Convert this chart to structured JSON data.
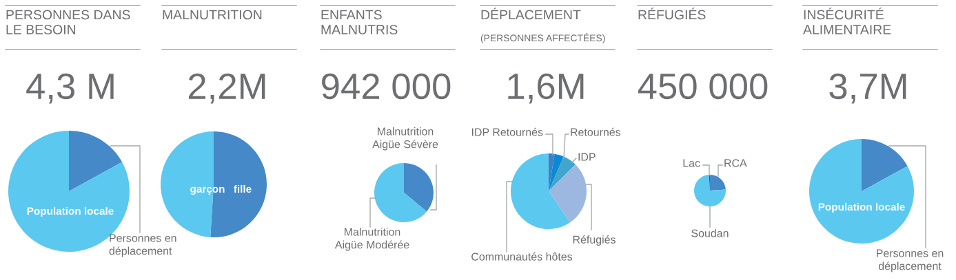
{
  "chart_data": [
    {
      "type": "pie",
      "title": "PERSONNES DANS\nLE BESOIN",
      "annotations": [
        "4,3 M"
      ],
      "categories": [
        "Personnes en\ndéplacement",
        "Population locale"
      ],
      "values": [
        17,
        83
      ],
      "colors": [
        "#4589c8",
        "#5bc8f0"
      ]
    },
    {
      "type": "pie",
      "title": "MALNUTRITION",
      "annotations": [
        "2,2M"
      ],
      "categories": [
        "fille",
        "garçon"
      ],
      "values": [
        51,
        49
      ],
      "colors": [
        "#4589c8",
        "#5bc8f0"
      ]
    },
    {
      "type": "pie",
      "title": "ENFANTS\nMALNUTRIS",
      "annotations": [
        "942 000"
      ],
      "categories": [
        "Malnutrition\nAigüe Sévère",
        "Malnutrition\nAigüe Modérée"
      ],
      "values": [
        36,
        64
      ],
      "colors": [
        "#4589c8",
        "#5bc8f0"
      ]
    },
    {
      "type": "pie",
      "title": "DÉPLACEMENT",
      "subtitle": "(PERSONNES AFFECTÉES)",
      "annotations": [
        "1,6M"
      ],
      "categories": [
        "IDP Retournés",
        "Retournés",
        "IDP",
        "Réfugiés",
        "Communautés hôtes"
      ],
      "values": [
        2.5,
        4,
        6,
        28,
        59.5
      ],
      "colors": [
        "#3f7fc4",
        "#0a8ad6",
        "#40a6cc",
        "#9cb8e0",
        "#5bc8f0"
      ]
    },
    {
      "type": "pie",
      "title": "RÉFUGIÉS",
      "annotations": [
        "450 000"
      ],
      "categories": [
        "RCA",
        "Soudan",
        "Lac"
      ],
      "values": [
        24,
        75,
        1
      ],
      "colors": [
        "#4589c8",
        "#5bc8f0",
        "#3a5a80"
      ]
    },
    {
      "type": "pie",
      "title": "INSÉCURITÉ\nALIMENTAIRE",
      "annotations": [
        "3,7M"
      ],
      "categories": [
        "Personnes en\ndéplacement",
        "Population locale"
      ],
      "values": [
        17,
        83
      ],
      "colors": [
        "#4589c8",
        "#5bc8f0"
      ]
    }
  ]
}
